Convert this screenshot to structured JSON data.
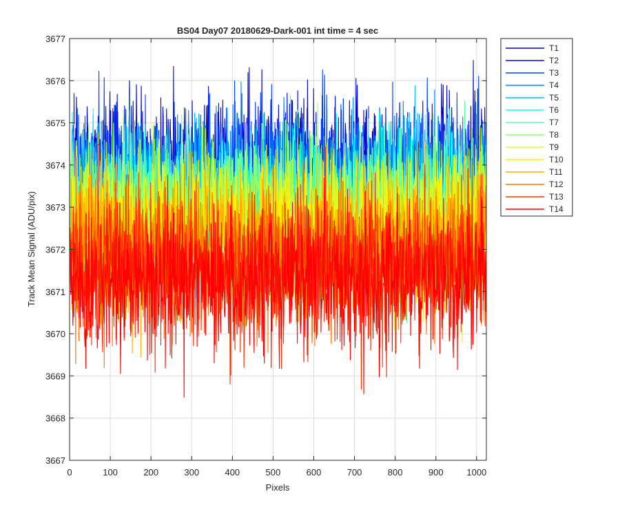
{
  "chart_data": {
    "type": "line",
    "title": "BS04 Day07 20180629-Dark-001 int time = 4 sec",
    "xlabel": "Pixels",
    "ylabel": "Track Mean Signal (ADU/pix)",
    "xlim": [
      0,
      1024
    ],
    "ylim": [
      3667,
      3677
    ],
    "xticks": [
      0,
      100,
      200,
      300,
      400,
      500,
      600,
      700,
      800,
      900,
      1000
    ],
    "yticks": [
      3667,
      3668,
      3669,
      3670,
      3671,
      3672,
      3673,
      3674,
      3675,
      3676,
      3677
    ],
    "grid": true,
    "legend_position": "outside-top-right",
    "points_per_series": 1024,
    "series": [
      {
        "name": "T1",
        "color": "#0000bf",
        "mean": 3673.8,
        "spread": 0.85,
        "min": 3670.3,
        "max": 3676.7
      },
      {
        "name": "T2",
        "color": "#0008d8",
        "mean": 3673.7,
        "spread": 0.85,
        "min": 3670.4,
        "max": 3676.6
      },
      {
        "name": "T3",
        "color": "#0040ff",
        "mean": 3673.6,
        "spread": 0.85,
        "min": 3670.2,
        "max": 3676.5
      },
      {
        "name": "T4",
        "color": "#0080ff",
        "mean": 3673.5,
        "spread": 0.85,
        "min": 3670.0,
        "max": 3676.4
      },
      {
        "name": "T5",
        "color": "#00bfff",
        "mean": 3673.3,
        "spread": 0.85,
        "min": 3667.6,
        "max": 3676.4
      },
      {
        "name": "T6",
        "color": "#10ffef",
        "mean": 3673.2,
        "spread": 0.85,
        "min": 3669.5,
        "max": 3676.1
      },
      {
        "name": "T7",
        "color": "#50ffaf",
        "mean": 3673.0,
        "spread": 0.85,
        "min": 3669.6,
        "max": 3676.0
      },
      {
        "name": "T8",
        "color": "#8fff70",
        "mean": 3672.9,
        "spread": 0.85,
        "min": 3668.6,
        "max": 3676.2
      },
      {
        "name": "T9",
        "color": "#cfff30",
        "mean": 3672.7,
        "spread": 0.85,
        "min": 3668.7,
        "max": 3676.4
      },
      {
        "name": "T10",
        "color": "#ffef00",
        "mean": 3672.5,
        "spread": 0.85,
        "min": 3668.6,
        "max": 3676.3
      },
      {
        "name": "T11",
        "color": "#ffaf00",
        "mean": 3672.2,
        "spread": 0.85,
        "min": 3668.5,
        "max": 3675.8
      },
      {
        "name": "T12",
        "color": "#ff7000",
        "mean": 3671.9,
        "spread": 0.85,
        "min": 3668.0,
        "max": 3675.4
      },
      {
        "name": "T13",
        "color": "#ff3000",
        "mean": 3671.6,
        "spread": 0.85,
        "min": 3667.8,
        "max": 3675.2
      },
      {
        "name": "T14",
        "color": "#ff0000",
        "mean": 3671.3,
        "spread": 0.85,
        "min": 3667.5,
        "max": 3674.9
      }
    ]
  }
}
